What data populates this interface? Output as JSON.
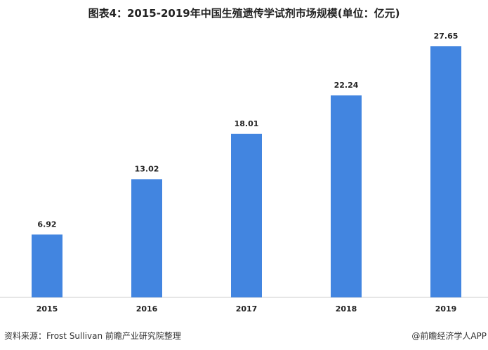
{
  "chart_data": {
    "type": "bar",
    "title": "图表4：2015-2019年中国生殖遗传学试剂市场规模(单位：亿元)",
    "categories": [
      "2015",
      "2016",
      "2017",
      "2018",
      "2019"
    ],
    "values": [
      6.92,
      13.02,
      18.01,
      22.24,
      27.65
    ],
    "data_labels": [
      "6.92",
      "13.02",
      "18.01",
      "22.24",
      "27.65"
    ],
    "xlabel": "",
    "ylabel": "",
    "ylim": [
      0,
      27.65
    ],
    "grid": false,
    "bar_color": "#4285E0"
  },
  "footer": {
    "source": "资料来源：Frost Sullivan 前瞻产业研究院整理",
    "credit": "@前瞻经济学人APP"
  },
  "watermark": "前瞻产业研究院"
}
